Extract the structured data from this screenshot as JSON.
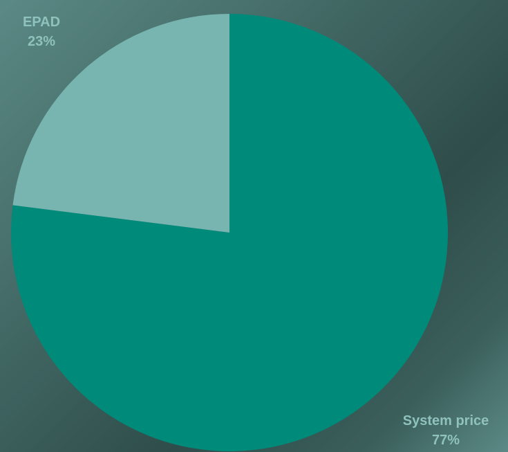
{
  "chart_data": {
    "type": "pie",
    "start_angle_deg": 0,
    "direction": "clockwise",
    "slices": [
      {
        "label": "System price",
        "value": 77,
        "value_label": "77%",
        "color": "#008a7a"
      },
      {
        "label": "EPAD",
        "value": 23,
        "value_label": "23%",
        "color": "#79b5b0"
      }
    ]
  }
}
